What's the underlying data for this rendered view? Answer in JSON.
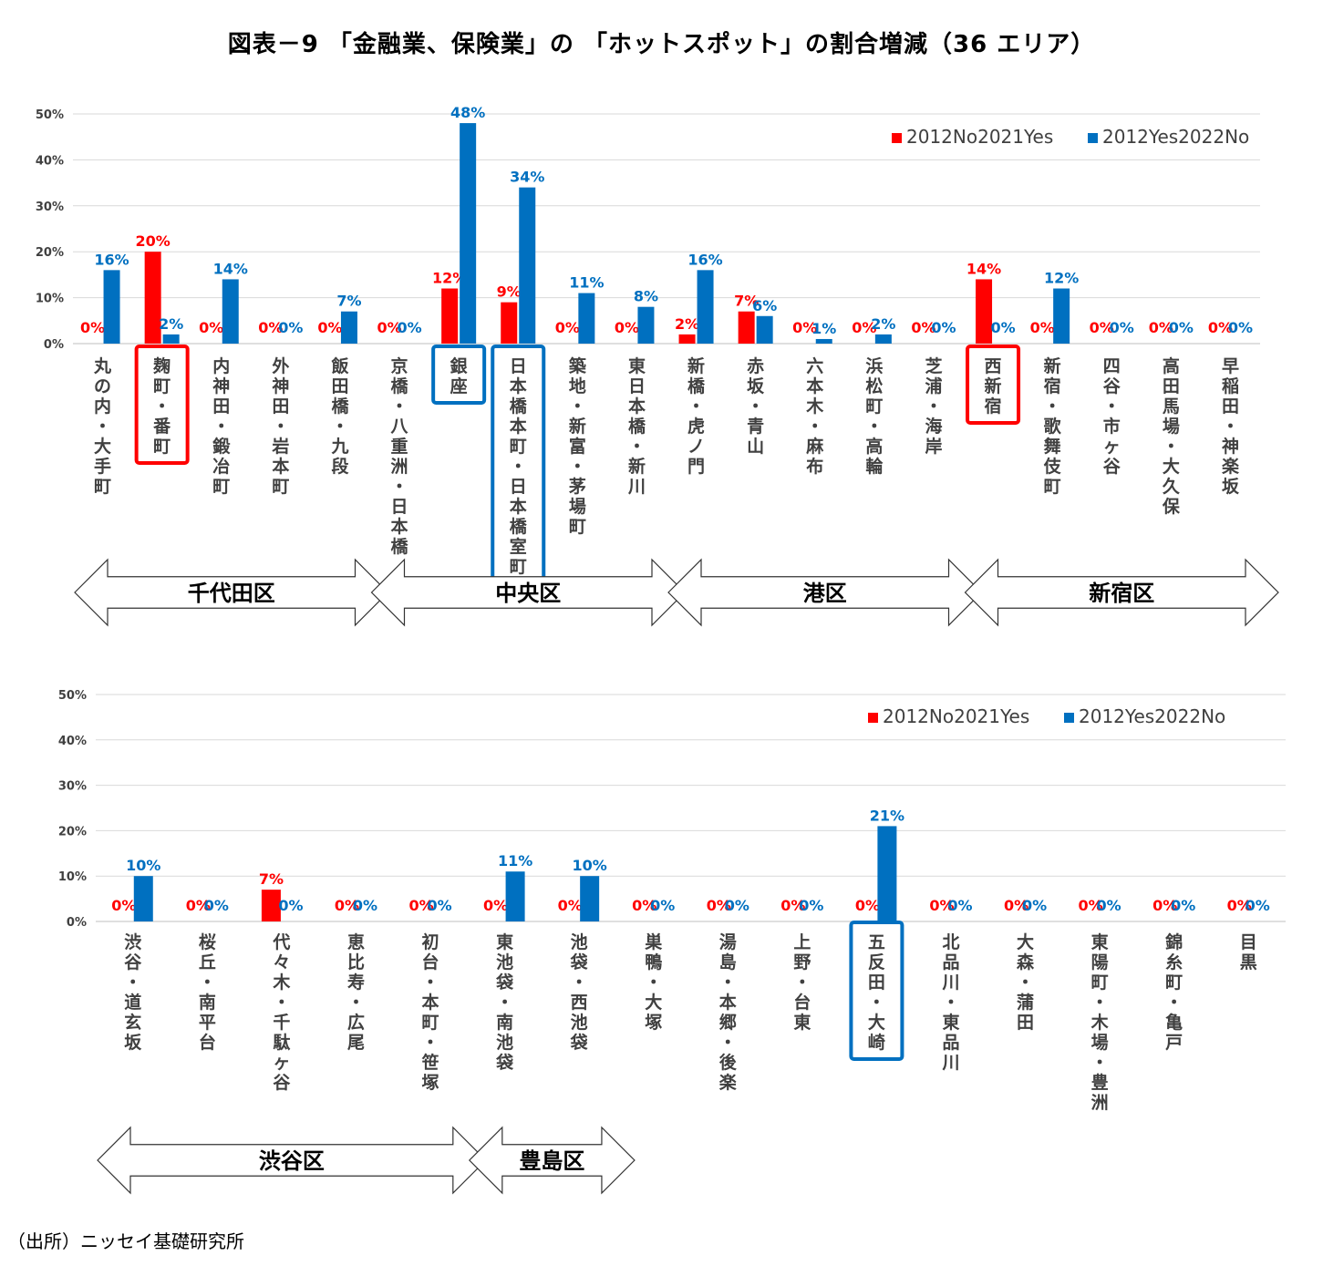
{
  "title": "図表－9 「金融業、保険業」の 「ホットスポット」の割合増減（36 エリア）",
  "source": "（出所）ニッセイ基礎研究所",
  "colors": {
    "red": "#ff0000",
    "blue": "#0070c0",
    "grid": "#d9d9d9",
    "axis": "#bfbfbf",
    "tick": "#404040",
    "label": "#404040"
  },
  "chart_data": [
    {
      "type": "bar",
      "ylim": [
        0,
        0.5
      ],
      "yticks": [
        "0%",
        "10%",
        "20%",
        "30%",
        "40%",
        "50%"
      ],
      "legend": "top-right",
      "series": [
        {
          "name": "2012No2021Yes",
          "color": "#ff0000",
          "values": [
            0,
            0.2,
            0,
            0,
            0,
            0,
            0.12,
            0.09,
            0,
            0,
            0.02,
            0.07,
            0,
            0,
            0,
            0.14,
            0,
            0,
            0,
            0
          ],
          "labels": [
            "0%",
            "20%",
            "0%",
            "0%",
            "0%",
            "0%",
            "12%",
            "9%",
            "0%",
            "0%",
            "2%",
            "7%",
            "0%",
            "0%",
            "0%",
            "14%",
            "0%",
            "0%",
            "0%",
            "0%"
          ]
        },
        {
          "name": "2012Yes2022No",
          "color": "#0070c0",
          "values": [
            0.16,
            0.02,
            0.14,
            0,
            0.07,
            0,
            0.48,
            0.34,
            0.11,
            0.08,
            0.16,
            0.06,
            0.01,
            0.02,
            0,
            0,
            0.12,
            0,
            0,
            0
          ],
          "labels": [
            "16%",
            "2%",
            "14%",
            "0%",
            "7%",
            "0%",
            "48%",
            "34%",
            "11%",
            "8%",
            "16%",
            "6%",
            "1%",
            "2%",
            "0%",
            "0%",
            "12%",
            "0%",
            "0%",
            "0%"
          ]
        }
      ],
      "categories": [
        "丸の内・大手町",
        "麹町・番町",
        "内神田・鍛冶町",
        "外神田・岩本町",
        "飯田橋・九段",
        "京橋・八重洲・日本橋",
        "銀座",
        "日本橋本町・日本橋室町",
        "築地・新富・茅場町",
        "東日本橋・新川",
        "新橋・虎ノ門",
        "赤坂・青山",
        "六本木・麻布",
        "浜松町・高輪",
        "芝浦・海岸",
        "西新宿",
        "新宿・歌舞伎町",
        "四谷・市ヶ谷",
        "高田馬場・大久保",
        "早稲田・神楽坂"
      ],
      "highlights": [
        {
          "category": "麹町・番町",
          "color": "red"
        },
        {
          "category": "銀座",
          "color": "blue"
        },
        {
          "category": "日本橋本町・日本橋室町",
          "color": "blue"
        },
        {
          "category": "西新宿",
          "color": "red"
        }
      ],
      "wards": [
        {
          "name": "千代田区",
          "from": 0,
          "to": 4
        },
        {
          "name": "中央区",
          "from": 5,
          "to": 9
        },
        {
          "name": "港区",
          "from": 10,
          "to": 14
        },
        {
          "name": "新宿区",
          "from": 15,
          "to": 19
        }
      ]
    },
    {
      "type": "bar",
      "ylim": [
        0,
        0.5
      ],
      "yticks": [
        "0%",
        "10%",
        "20%",
        "30%",
        "40%",
        "50%"
      ],
      "legend": "top-right",
      "series": [
        {
          "name": "2012No2021Yes",
          "color": "#ff0000",
          "values": [
            0,
            0,
            0.07,
            0,
            0,
            0,
            0,
            0,
            0,
            0,
            0,
            0,
            0,
            0,
            0,
            0
          ],
          "labels": [
            "0%",
            "0%",
            "7%",
            "0%",
            "0%",
            "0%",
            "0%",
            "0%",
            "0%",
            "0%",
            "0%",
            "0%",
            "0%",
            "0%",
            "0%",
            "0%"
          ]
        },
        {
          "name": "2012Yes2022No",
          "color": "#0070c0",
          "values": [
            0.1,
            0,
            0,
            0,
            0,
            0.11,
            0.1,
            0,
            0,
            0,
            0.21,
            0,
            0,
            0,
            0,
            0
          ],
          "labels": [
            "10%",
            "0%",
            "0%",
            "0%",
            "0%",
            "11%",
            "10%",
            "0%",
            "0%",
            "0%",
            "21%",
            "0%",
            "0%",
            "0%",
            "0%",
            "0%"
          ]
        }
      ],
      "categories": [
        "渋谷・道玄坂",
        "桜丘・南平台",
        "代々木・千駄ヶ谷",
        "恵比寿・広尾",
        "初台・本町・笹塚",
        "東池袋・南池袋",
        "池袋・西池袋",
        "巣鴨・大塚",
        "湯島・本郷・後楽",
        "上野・台東",
        "五反田・大崎",
        "北品川・東品川",
        "大森・蒲田",
        "東陽町・木場・豊洲",
        "錦糸町・亀戸",
        "目黒"
      ],
      "highlights": [
        {
          "category": "五反田・大崎",
          "color": "blue"
        }
      ],
      "wards": [
        {
          "name": "渋谷区",
          "from": 0,
          "to": 4
        },
        {
          "name": "豊島区",
          "from": 5,
          "to": 6
        }
      ]
    }
  ]
}
